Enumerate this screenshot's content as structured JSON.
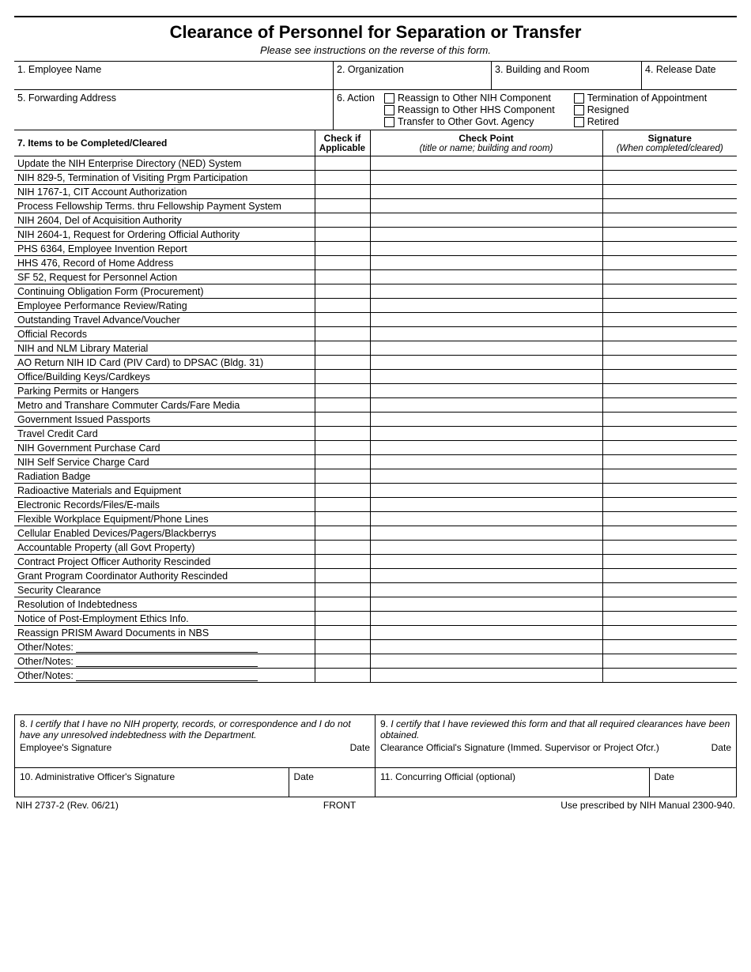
{
  "title": "Clearance of Personnel for Separation or Transfer",
  "subtitle": "Please see instructions on the reverse of this form.",
  "fields": {
    "f1": "1. Employee Name",
    "f2": "2. Organization",
    "f3": "3. Building and Room",
    "f4": "4. Release Date",
    "f5": "5. Forwarding Address",
    "f6": "6.  Action"
  },
  "actions_col1": [
    "Reassign to Other NIH Component",
    "Reassign to Other HHS Component",
    "Transfer to Other Govt. Agency"
  ],
  "actions_col2": [
    "Termination of Appointment",
    "Resigned",
    "Retired"
  ],
  "headers": {
    "items": "7. Items to be Completed/Cleared",
    "chk": "Check if",
    "chk_sub": "Applicable",
    "cp": "Check Point",
    "cp_sub": "(title or name; building and room)",
    "sig": "Signature",
    "sig_sub": "(When completed/cleared)"
  },
  "items": [
    "Update the NIH Enterprise Directory (NED) System",
    "NIH 829-5, Termination of Visiting Prgm Participation",
    "NIH 1767-1, CIT Account Authorization",
    "Process Fellowship Terms. thru Fellowship Payment System",
    "NIH 2604, Del of Acquisition Authority",
    "NIH 2604-1, Request for Ordering Official Authority",
    "PHS 6364, Employee Invention Report",
    "HHS 476, Record of Home Address",
    "SF 52, Request for Personnel Action",
    "Continuing Obligation Form (Procurement)",
    "Employee Performance Review/Rating",
    "Outstanding Travel Advance/Voucher",
    "Official Records",
    "NIH and NLM Library Material",
    "AO Return NIH ID Card (PIV Card) to DPSAC (Bldg. 31)",
    "Office/Building Keys/Cardkeys",
    "Parking Permits or Hangers",
    "Metro and Transhare Commuter Cards/Fare Media",
    "Government Issued Passports",
    "Travel Credit Card",
    "NIH Government Purchase Card",
    "NIH Self Service Charge Card",
    "Radiation Badge",
    "Radioactive Materials and Equipment",
    "Electronic Records/Files/E-mails",
    "Flexible Workplace Equipment/Phone Lines",
    "Cellular Enabled Devices/Pagers/Blackberrys",
    "Accountable Property (all Govt Property)",
    "Contract Project Officer Authority Rescinded",
    "Grant Program Coordinator Authority Rescinded",
    "Security Clearance",
    "Resolution of Indebtedness",
    "Notice of Post-Employment Ethics Info.",
    "Reassign PRISM Award Documents in NBS"
  ],
  "other_label": "Other/Notes:",
  "sig8_a": "8.",
  "sig8_b": "I certify that I have no NIH property, records, or correspondence and I do not have any unresolved indebtedness with the Department.",
  "sig8_c": "Employee's Signature",
  "sig8_d": "Date",
  "sig9_a": "9.",
  "sig9_b": "I certify that I have reviewed this form and that all required clearances have been obtained.",
  "sig9_c": "Clearance Official's Signature (Immed. Supervisor or Project Ofcr.)",
  "sig9_d": "Date",
  "sig10": "10.  Administrative Officer's Signature",
  "sig10d": "Date",
  "sig11": "11. Concurring Official (optional)",
  "sig11d": "Date",
  "footer_left": "NIH 2737-2 (Rev. 06/21)",
  "footer_center": "FRONT",
  "footer_right": "Use prescribed by NIH Manual 2300-940."
}
